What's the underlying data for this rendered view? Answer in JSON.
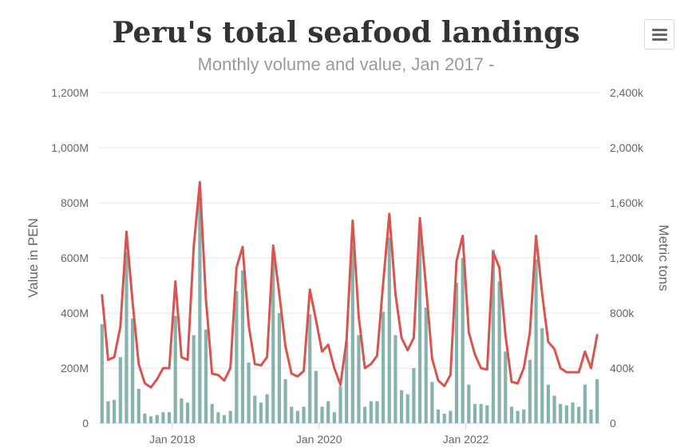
{
  "chart_data": {
    "type": "bar+line",
    "title": "Peru's total seafood landings",
    "subtitle": "Monthly volume and value, Jan 2017 -",
    "x_start": "2017-01",
    "x_labels": [
      "Jan 2018",
      "Jan 2020",
      "Jan 2022"
    ],
    "y_left": {
      "label": "Value in PEN",
      "min": 0,
      "max": 1200,
      "ticks": [
        "0",
        "200M",
        "400M",
        "600M",
        "800M",
        "1,000M",
        "1,200M"
      ]
    },
    "y_right": {
      "label": "Metric tons",
      "min": 0,
      "max": 2400,
      "ticks": [
        "0",
        "400k",
        "800k",
        "1,200k",
        "1,600k",
        "2,000k",
        "2,400k"
      ]
    },
    "grid": true,
    "series": [
      {
        "type": "bar",
        "axis": "right",
        "color": "#86b4ac",
        "values": [
          720,
          160,
          170,
          480,
          1240,
          760,
          250,
          70,
          50,
          60,
          80,
          80,
          780,
          180,
          150,
          640,
          1700,
          680,
          140,
          80,
          60,
          90,
          960,
          1110,
          440,
          200,
          150,
          210,
          1200,
          800,
          320,
          120,
          90,
          120,
          790,
          380,
          120,
          160,
          80,
          270,
          590,
          1290,
          640,
          120,
          160,
          160,
          810,
          1350,
          640,
          240,
          210,
          400,
          1380,
          840,
          300,
          100,
          70,
          90,
          1020,
          1200,
          280,
          140,
          140,
          130,
          1260,
          1030,
          520,
          120,
          90,
          100,
          460,
          1190,
          690,
          280,
          200,
          140,
          130,
          150,
          120,
          280,
          100,
          320
        ]
      },
      {
        "type": "line",
        "axis": "left",
        "color": "#d9534f",
        "values": [
          465,
          230,
          240,
          350,
          695,
          440,
          215,
          145,
          130,
          160,
          200,
          200,
          515,
          240,
          230,
          640,
          875,
          450,
          180,
          175,
          155,
          200,
          565,
          640,
          355,
          215,
          210,
          240,
          645,
          470,
          280,
          180,
          170,
          190,
          485,
          375,
          260,
          285,
          200,
          140,
          300,
          735,
          385,
          200,
          215,
          245,
          510,
          760,
          470,
          310,
          265,
          310,
          745,
          495,
          235,
          155,
          135,
          175,
          590,
          680,
          330,
          250,
          200,
          195,
          620,
          565,
          320,
          150,
          145,
          200,
          330,
          680,
          470,
          295,
          270,
          200,
          185,
          185,
          185,
          260,
          200,
          320
        ]
      }
    ]
  }
}
